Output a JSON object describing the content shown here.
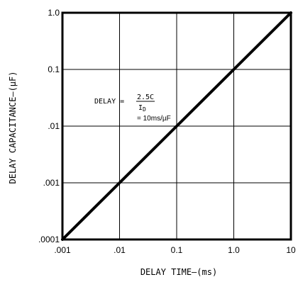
{
  "chart_data": {
    "type": "line",
    "xscale": "log",
    "yscale": "log",
    "xlim": [
      0.001,
      10
    ],
    "ylim": [
      0.0001,
      1.0
    ],
    "grid": true,
    "xlabel": "DELAY TIME–(ms)",
    "ylabel": "DELAY CAPACITANCE–(µF)",
    "x_ticks": [
      ".001",
      ".01",
      "0.1",
      "1.0",
      "10"
    ],
    "y_ticks": [
      ".0001",
      ".001",
      ".01",
      "0.1",
      "1.0"
    ],
    "series": [
      {
        "x": [
          0.001,
          0.01,
          0.1,
          1.0,
          10
        ],
        "y": [
          0.0001,
          0.001,
          0.01,
          0.1,
          1.0
        ],
        "color": "#000000"
      }
    ],
    "annotation": {
      "lhs": "DELAY =",
      "numerator": "2.5C",
      "denominator_i": "I",
      "denominator_sub": "D",
      "result": "= 10ms/µF"
    }
  }
}
